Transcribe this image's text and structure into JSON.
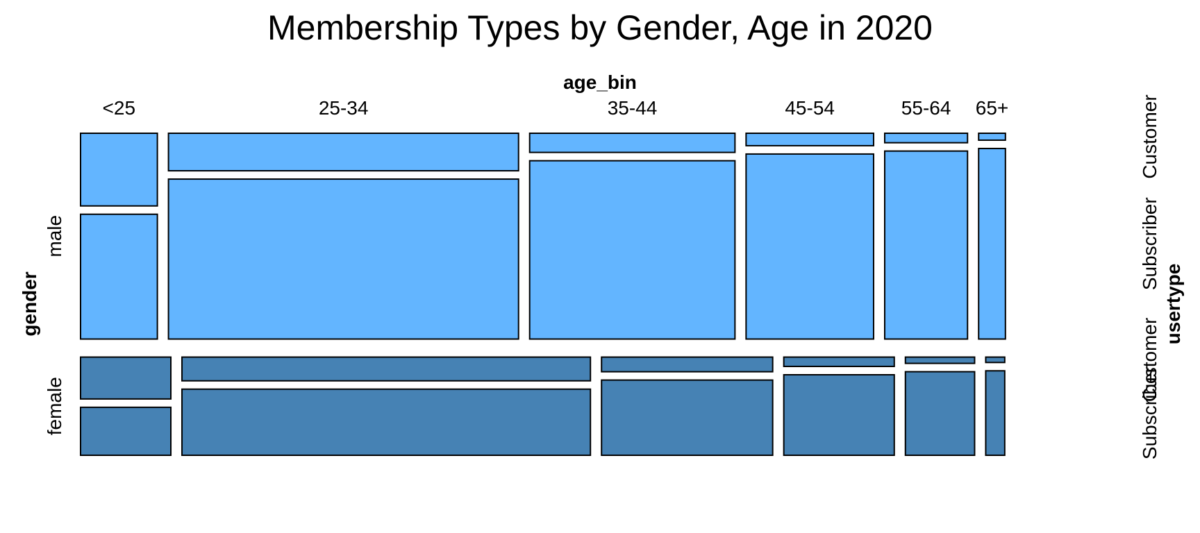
{
  "chart_data": {
    "type": "mosaic",
    "title": "Membership Types by Gender, Age in 2020",
    "x_variable": "age_bin",
    "y_variable": "gender",
    "z_variable": "usertype",
    "age_bins": [
      "<25",
      "25-34",
      "35-44",
      "45-54",
      "55-64",
      "65+"
    ],
    "usertypes": [
      "Customer",
      "Subscriber"
    ],
    "colors": {
      "male": "#63b5ff",
      "female": "#4682b4"
    },
    "genders": [
      {
        "name": "male",
        "width_share": [
          0.078,
          0.3555,
          0.2085,
          0.1295,
          0.0841,
          0.0272
        ],
        "customer_share": [
          0.368,
          0.19,
          0.097,
          0.063,
          0.048,
          0.035
        ]
      },
      {
        "name": "female",
        "width_share": [
          0.0917,
          0.4148,
          0.1738,
          0.1122,
          0.0703,
          0.0193
        ],
        "customer_share": [
          0.466,
          0.264,
          0.163,
          0.104,
          0.07,
          0.06
        ]
      }
    ],
    "gender_share": {
      "male": 0.677,
      "female": 0.323
    }
  }
}
